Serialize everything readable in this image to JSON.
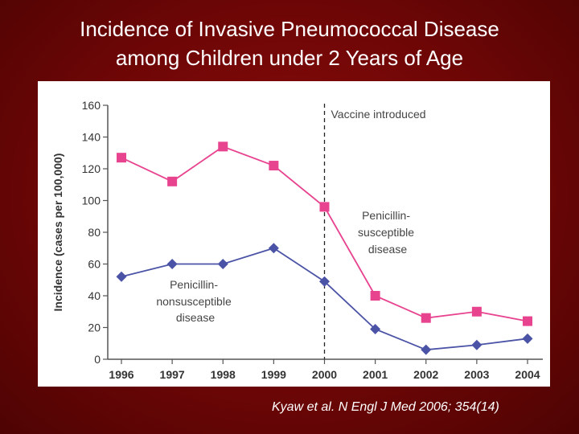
{
  "slide": {
    "title_line1": "Incidence of Invasive Pneumococcal Disease",
    "title_line2": "among Children under 2 Years of Age",
    "citation": "Kyaw et al. N Engl J Med 2006; 354(14)"
  },
  "chart_data": {
    "type": "line",
    "title": "",
    "xlabel": "",
    "ylabel": "Incidence (cases per 100,000)",
    "x": [
      "1996",
      "1997",
      "1998",
      "1999",
      "2000",
      "2001",
      "2002",
      "2003",
      "2004"
    ],
    "ylim": [
      0,
      160
    ],
    "yticks": [
      "0",
      "20",
      "40",
      "60",
      "80",
      "100",
      "120",
      "140",
      "160"
    ],
    "grid": false,
    "series": [
      {
        "name": "Penicillin-susceptible disease",
        "label_lines": [
          "Penicillin-",
          "susceptible",
          "disease"
        ],
        "color": "#e8438f",
        "marker": "square",
        "values": [
          127,
          112,
          134,
          122,
          96,
          40,
          26,
          30,
          24
        ]
      },
      {
        "name": "Penicillin-nonsusceptible disease",
        "label_lines": [
          "Penicillin-",
          "nonsusceptible",
          "disease"
        ],
        "color": "#4b53a6",
        "marker": "diamond",
        "values": [
          52,
          60,
          60,
          70,
          49,
          19,
          6,
          9,
          13
        ]
      }
    ],
    "annotation": {
      "text": "Vaccine introduced",
      "x": "2000"
    }
  }
}
